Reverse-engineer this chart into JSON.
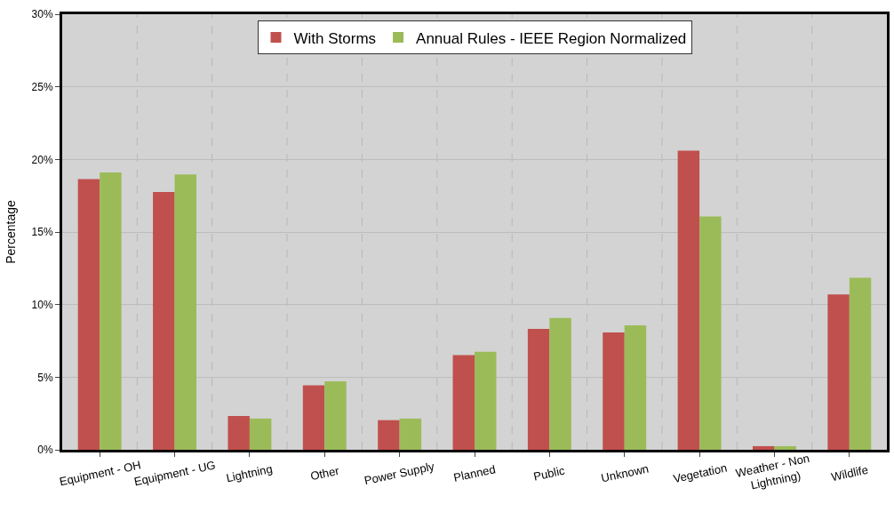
{
  "chart_data": {
    "type": "bar",
    "ylabel": "Percentage",
    "categories": [
      "Equipment - OH",
      "Equipment - UG",
      "Lightning",
      "Other",
      "Power Supply",
      "Planned",
      "Public",
      "Unknown",
      "Vegetation",
      "Weather - Non Lightning)",
      "Wildlife"
    ],
    "series": [
      {
        "name": "With Storms",
        "color": "#c0504d",
        "values": [
          18.65,
          17.75,
          2.33,
          4.44,
          2.04,
          6.52,
          8.32,
          8.08,
          20.6,
          0.25,
          10.7
        ]
      },
      {
        "name": "Annual Rules - IEEE Region Normalized",
        "color": "#9bbb59",
        "values": [
          19.1,
          18.96,
          2.15,
          4.72,
          2.15,
          6.75,
          9.08,
          8.57,
          16.07,
          0.25,
          11.84
        ]
      }
    ],
    "ylim": [
      0,
      30
    ],
    "yticks": [
      {
        "value": 0,
        "label": "0%"
      },
      {
        "value": 5,
        "label": "5%"
      },
      {
        "value": 10,
        "label": "10%"
      },
      {
        "value": 15,
        "label": "15%"
      },
      {
        "value": 20,
        "label": "20%"
      },
      {
        "value": 25,
        "label": "25%"
      },
      {
        "value": 30,
        "label": "30%"
      }
    ],
    "grid": true,
    "legend": "top"
  }
}
